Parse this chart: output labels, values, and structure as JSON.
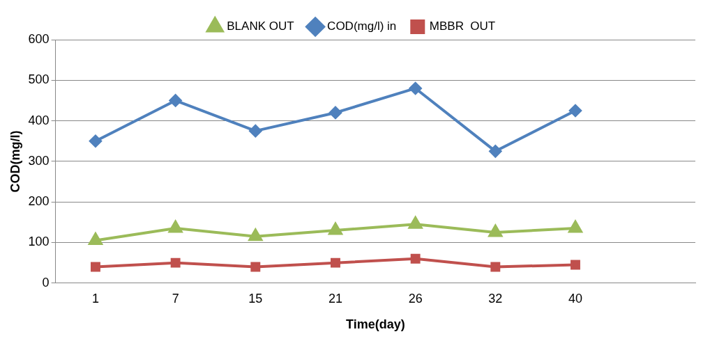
{
  "chart_data": {
    "type": "line",
    "xlabel": "Time(day)",
    "ylabel": "COD(mg/l)",
    "categories": [
      "1",
      "7",
      "15",
      "21",
      "26",
      "32",
      "40",
      null
    ],
    "series": [
      {
        "name": "BLANK OUT",
        "color": "#9bbb59",
        "marker": "triangle",
        "values": [
          105,
          135,
          115,
          130,
          145,
          125,
          135,
          null
        ]
      },
      {
        "name": "COD(mg/l) in",
        "color": "#4f81bd",
        "marker": "diamond",
        "values": [
          350,
          450,
          375,
          420,
          480,
          325,
          425,
          null
        ]
      },
      {
        "name": "MBBR  OUT",
        "color": "#c0504d",
        "marker": "square",
        "values": [
          40,
          50,
          40,
          50,
          60,
          40,
          45,
          null
        ]
      }
    ],
    "ylim": [
      0,
      600
    ],
    "yticks": [
      0,
      100,
      200,
      300,
      400,
      500,
      600
    ],
    "grid": "y",
    "legend": "top"
  }
}
